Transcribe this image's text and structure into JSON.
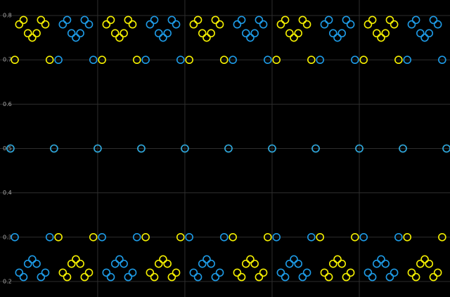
{
  "chart_data": {
    "type": "scatter",
    "x": [
      0,
      1,
      2,
      3,
      4,
      5,
      6,
      7,
      8,
      9,
      10,
      11,
      12,
      13,
      14,
      15,
      16,
      17,
      18,
      19,
      20,
      21,
      22,
      23,
      24,
      25,
      26,
      27,
      28,
      29,
      30,
      31,
      32,
      33,
      34,
      35,
      36,
      37,
      38,
      39,
      40,
      41,
      42,
      43,
      44,
      45,
      46,
      47,
      48,
      49,
      50,
      51,
      52,
      53,
      54,
      55,
      56,
      57,
      58,
      59,
      60,
      61,
      62,
      63,
      64,
      65,
      66,
      67,
      68,
      69,
      70,
      71,
      72,
      73,
      74,
      75,
      76,
      77,
      78,
      79,
      80,
      81,
      82,
      83,
      84,
      85,
      86,
      87,
      88,
      89,
      90,
      91,
      92,
      93,
      94,
      95,
      96,
      97,
      98,
      99,
      100
    ],
    "series": [
      {
        "color": "#f5f000",
        "values": [
          0.5,
          0.7,
          0.78,
          0.79,
          0.76,
          0.75,
          0.76,
          0.79,
          0.78,
          0.7,
          0.5,
          0.3,
          0.22,
          0.21,
          0.24,
          0.25,
          0.24,
          0.21,
          0.22,
          0.3,
          0.5,
          0.7,
          0.78,
          0.79,
          0.76,
          0.75,
          0.76,
          0.79,
          0.78,
          0.7,
          0.5,
          0.3,
          0.22,
          0.21,
          0.24,
          0.25,
          0.24,
          0.21,
          0.22,
          0.3,
          0.5,
          0.7,
          0.78,
          0.79,
          0.76,
          0.75,
          0.76,
          0.79,
          0.78,
          0.7,
          0.5,
          0.3,
          0.22,
          0.21,
          0.24,
          0.25,
          0.24,
          0.21,
          0.22,
          0.3,
          0.5,
          0.7,
          0.78,
          0.79,
          0.76,
          0.75,
          0.76,
          0.79,
          0.78,
          0.7,
          0.5,
          0.3,
          0.22,
          0.21,
          0.24,
          0.25,
          0.24,
          0.21,
          0.22,
          0.3,
          0.5,
          0.7,
          0.78,
          0.79,
          0.76,
          0.75,
          0.76,
          0.79,
          0.78,
          0.7,
          0.5,
          0.3,
          0.22,
          0.21,
          0.24,
          0.25,
          0.24,
          0.21,
          0.22,
          0.3,
          0.5
        ]
      },
      {
        "color": "#1e9be6",
        "values": [
          0.5,
          0.3,
          0.22,
          0.21,
          0.24,
          0.25,
          0.24,
          0.21,
          0.22,
          0.3,
          0.5,
          0.7,
          0.78,
          0.79,
          0.76,
          0.75,
          0.76,
          0.79,
          0.78,
          0.7,
          0.5,
          0.3,
          0.22,
          0.21,
          0.24,
          0.25,
          0.24,
          0.21,
          0.22,
          0.3,
          0.5,
          0.7,
          0.78,
          0.79,
          0.76,
          0.75,
          0.76,
          0.79,
          0.78,
          0.7,
          0.5,
          0.3,
          0.22,
          0.21,
          0.24,
          0.25,
          0.24,
          0.21,
          0.22,
          0.3,
          0.5,
          0.7,
          0.78,
          0.79,
          0.76,
          0.75,
          0.76,
          0.79,
          0.78,
          0.7,
          0.5,
          0.3,
          0.22,
          0.21,
          0.24,
          0.25,
          0.24,
          0.21,
          0.22,
          0.3,
          0.5,
          0.7,
          0.78,
          0.79,
          0.76,
          0.75,
          0.76,
          0.79,
          0.78,
          0.7,
          0.5,
          0.3,
          0.22,
          0.21,
          0.24,
          0.25,
          0.24,
          0.21,
          0.22,
          0.3,
          0.5,
          0.7,
          0.78,
          0.79,
          0.76,
          0.75,
          0.76,
          0.79,
          0.78,
          0.7,
          0.5
        ]
      }
    ],
    "xlim": [
      -2.4,
      100.8
    ],
    "xticks": [
      20,
      40,
      60,
      80
    ],
    "ylim": [
      0.165,
      0.835
    ],
    "yticks": [
      0.2,
      0.3,
      0.4,
      0.5,
      0.6,
      0.7,
      0.8
    ],
    "grid": true
  }
}
